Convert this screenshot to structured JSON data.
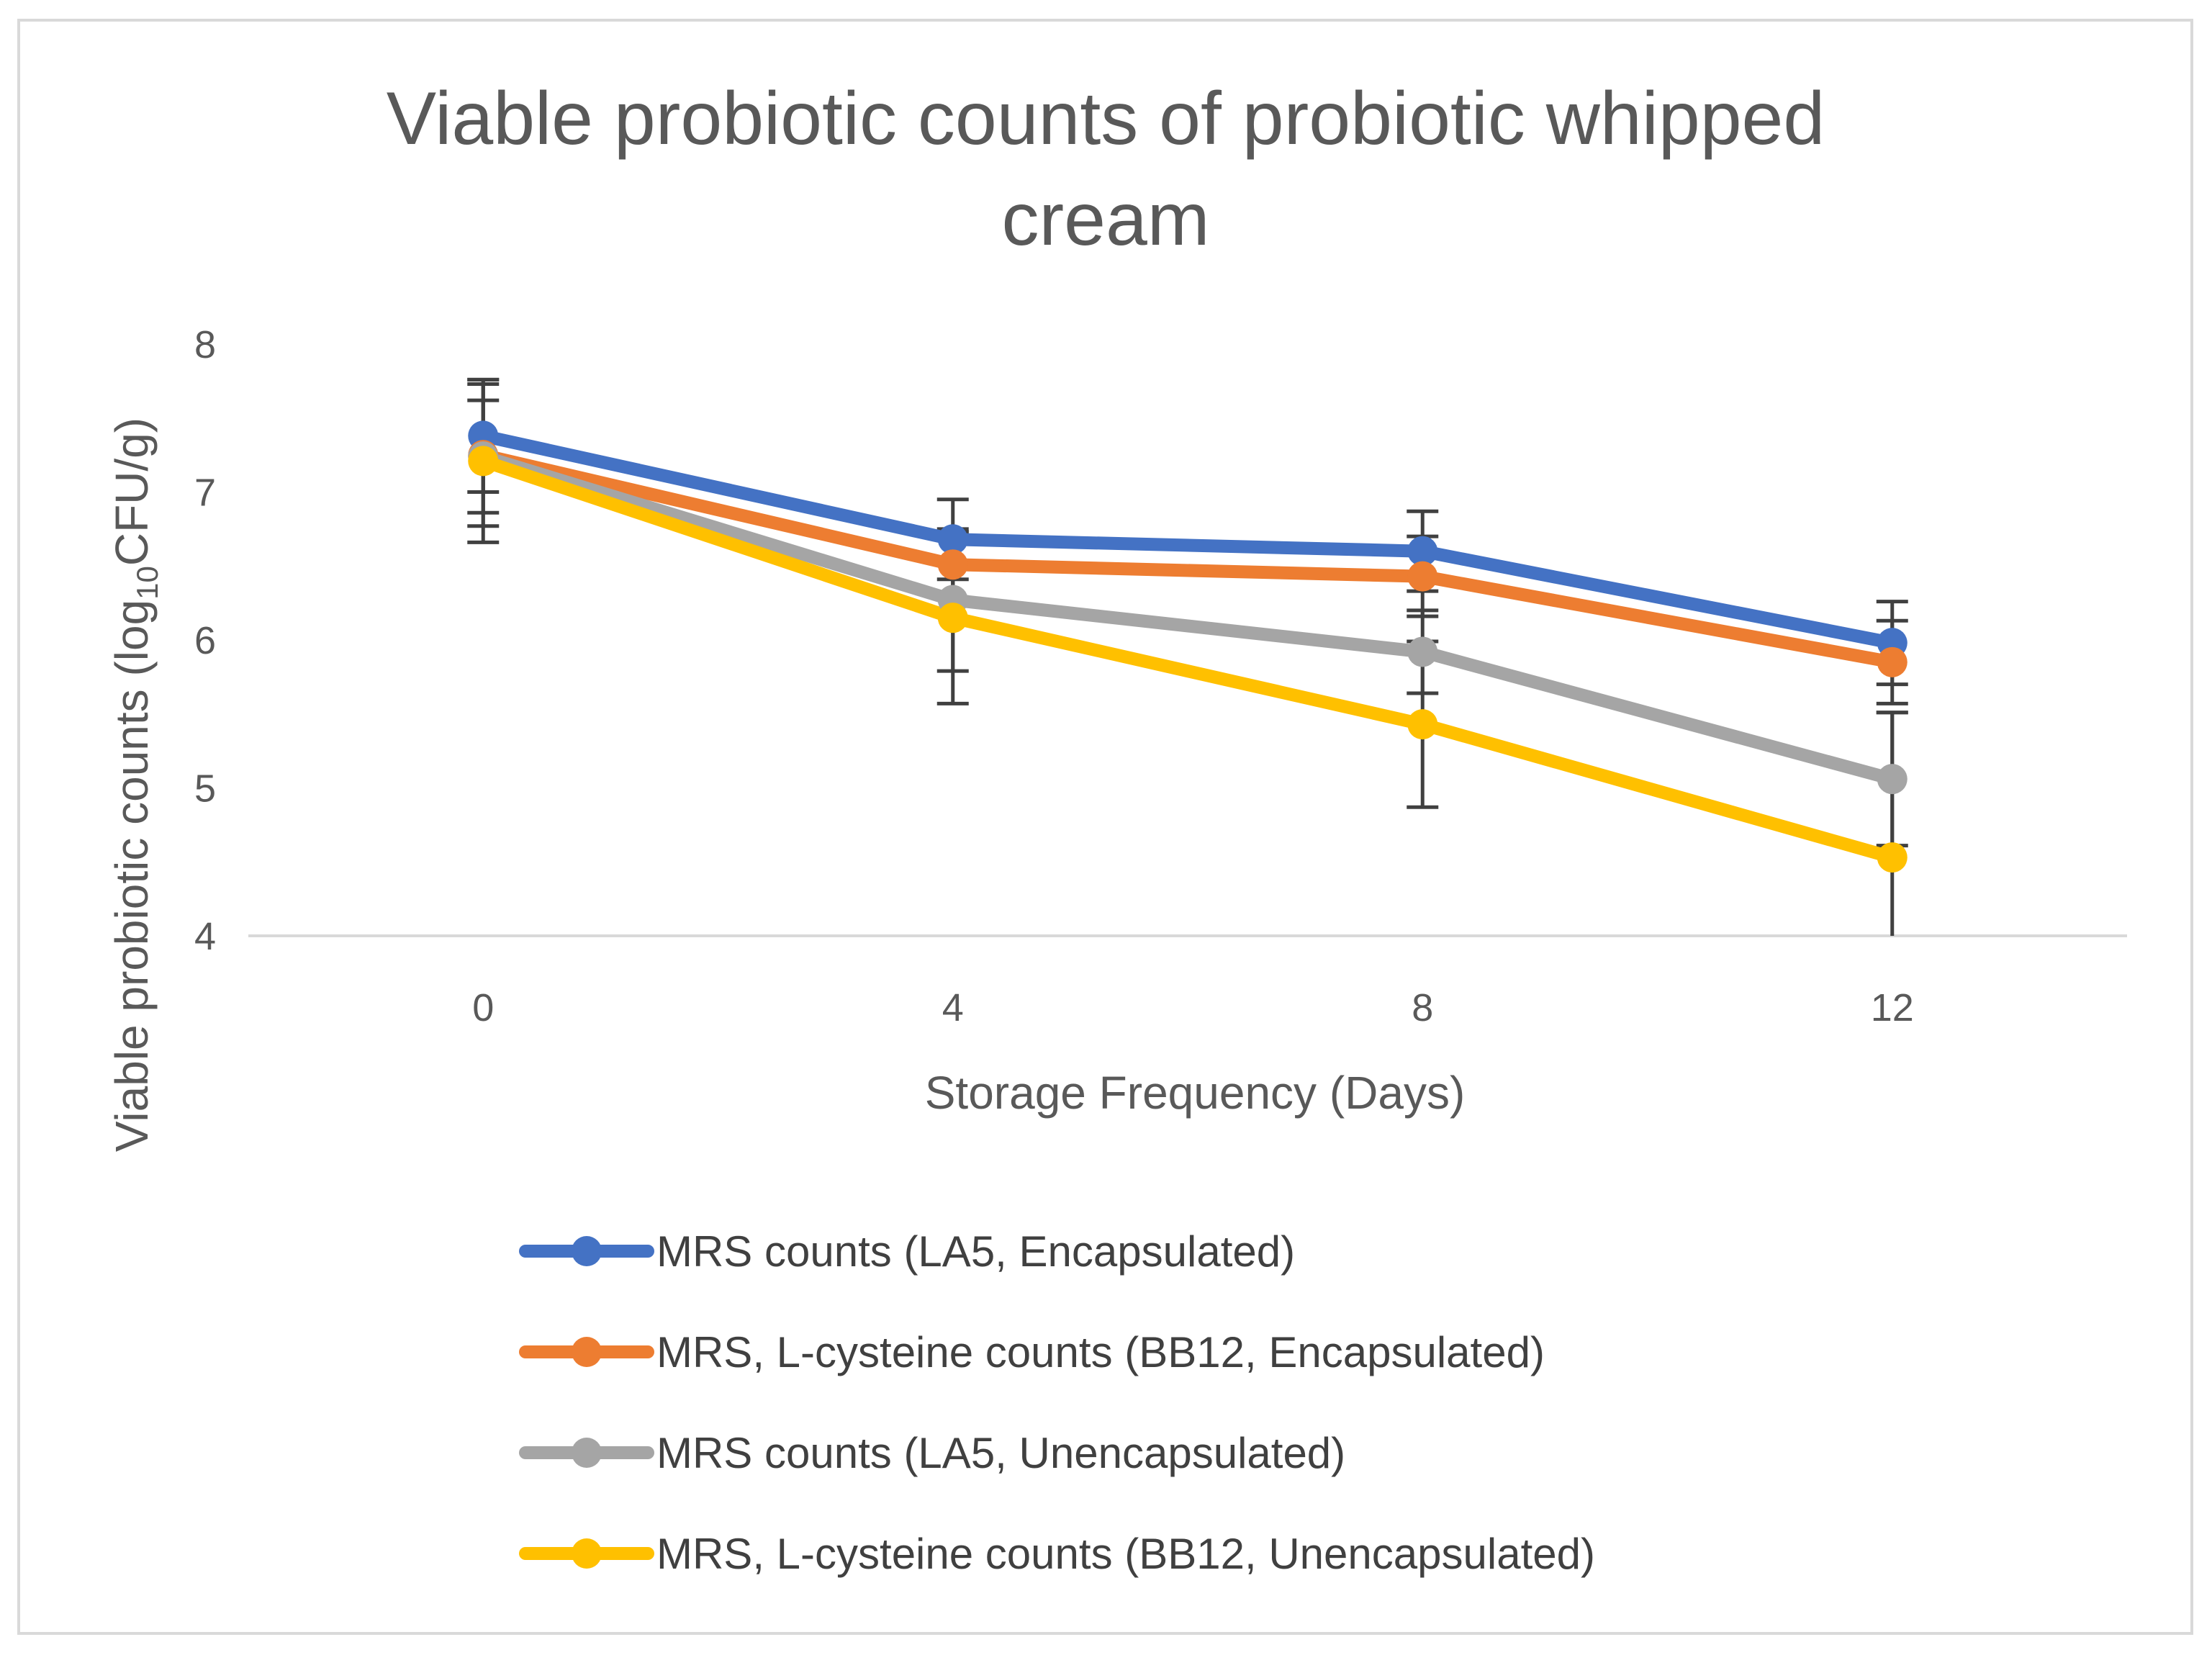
{
  "chart_data": {
    "type": "line",
    "title": "Viable probiotic counts of probiotic whipped cream",
    "title_lines": [
      "Viable probiotic counts of probiotic whipped",
      "cream"
    ],
    "xlabel": "Storage Frequency (Days)",
    "ylabel": {
      "prefix": "Viable probiotic counts (log",
      "subscript": "10",
      "suffix": "CFU/g)"
    },
    "categories": [
      "0",
      "4",
      "8",
      "12"
    ],
    "ylim": [
      4,
      8
    ],
    "yticks": [
      "4",
      "5",
      "6",
      "7",
      "8"
    ],
    "grid": false,
    "legend_position": "bottom",
    "series": [
      {
        "name": "MRS counts (LA5, Encapsulated)",
        "color": "#4472c4",
        "values": [
          7.38,
          6.68,
          6.6,
          5.98
        ],
        "errors": [
          0.38,
          0.27,
          0.27,
          0.28
        ]
      },
      {
        "name": "MRS, L-cysteine counts (BB12, Encapsulated)",
        "color": "#ed7d31",
        "values": [
          7.25,
          6.51,
          6.43,
          5.85
        ],
        "errors": [
          0.48,
          0.22,
          0.27,
          0.28
        ]
      },
      {
        "name": "MRS counts (LA5, Unencapsulated)",
        "color": "#a5a5a5",
        "values": [
          7.24,
          6.27,
          5.92,
          5.06
        ],
        "errors": [
          0.38,
          0.48,
          0.28,
          0.45
        ]
      },
      {
        "name": "MRS, L-cysteine counts (BB12, Unencapsulated)",
        "color": "#ffc000",
        "values": [
          7.21,
          6.15,
          5.43,
          4.53
        ],
        "errors": [
          0.55,
          0.58,
          0.56,
          0.98
        ]
      }
    ]
  }
}
